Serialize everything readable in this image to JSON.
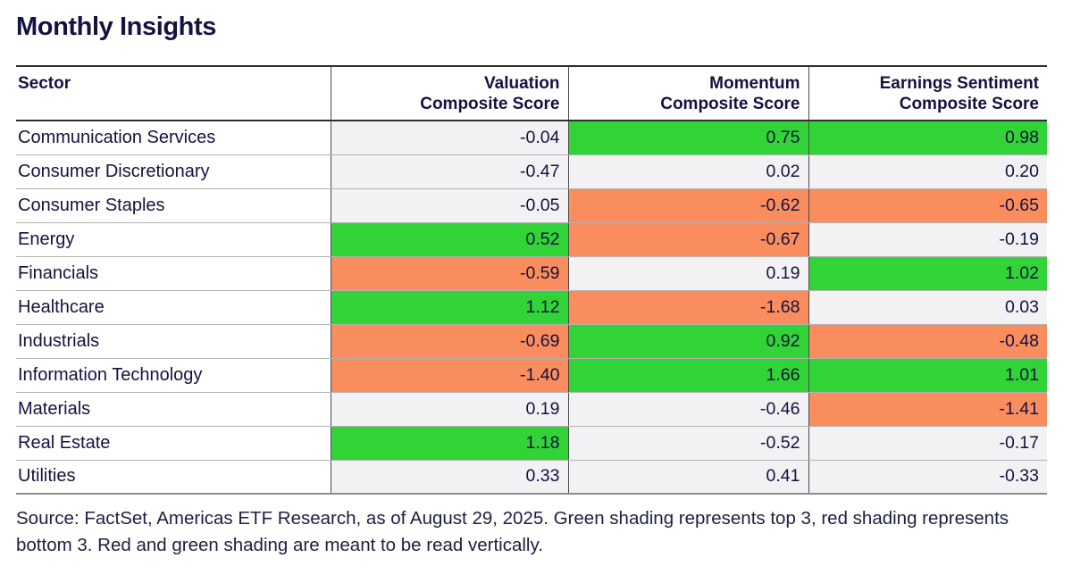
{
  "page": {
    "title": "Monthly Insights"
  },
  "table": {
    "columns": [
      {
        "header": "Sector"
      },
      {
        "header_line1": "Valuation",
        "header_line2": "Composite Score"
      },
      {
        "header_line1": "Momentum",
        "header_line2": "Composite Score"
      },
      {
        "header_line1": "Earnings Sentiment",
        "header_line2": "Composite Score"
      }
    ],
    "rows": [
      {
        "sector": "Communication Services",
        "values": [
          {
            "text": "-0.04",
            "shade": "none"
          },
          {
            "text": "0.75",
            "shade": "green"
          },
          {
            "text": "0.98",
            "shade": "green"
          }
        ]
      },
      {
        "sector": "Consumer Discretionary",
        "values": [
          {
            "text": "-0.47",
            "shade": "none"
          },
          {
            "text": "0.02",
            "shade": "none"
          },
          {
            "text": "0.20",
            "shade": "none"
          }
        ]
      },
      {
        "sector": "Consumer Staples",
        "values": [
          {
            "text": "-0.05",
            "shade": "none"
          },
          {
            "text": "-0.62",
            "shade": "red"
          },
          {
            "text": "-0.65",
            "shade": "red"
          }
        ]
      },
      {
        "sector": "Energy",
        "values": [
          {
            "text": "0.52",
            "shade": "green"
          },
          {
            "text": "-0.67",
            "shade": "red"
          },
          {
            "text": "-0.19",
            "shade": "none"
          }
        ]
      },
      {
        "sector": "Financials",
        "values": [
          {
            "text": "-0.59",
            "shade": "red"
          },
          {
            "text": "0.19",
            "shade": "none"
          },
          {
            "text": "1.02",
            "shade": "green"
          }
        ]
      },
      {
        "sector": "Healthcare",
        "values": [
          {
            "text": "1.12",
            "shade": "green"
          },
          {
            "text": "-1.68",
            "shade": "red"
          },
          {
            "text": "0.03",
            "shade": "none"
          }
        ]
      },
      {
        "sector": "Industrials",
        "values": [
          {
            "text": "-0.69",
            "shade": "red"
          },
          {
            "text": "0.92",
            "shade": "green"
          },
          {
            "text": "-0.48",
            "shade": "red"
          }
        ]
      },
      {
        "sector": "Information Technology",
        "values": [
          {
            "text": "-1.40",
            "shade": "red"
          },
          {
            "text": "1.66",
            "shade": "green"
          },
          {
            "text": "1.01",
            "shade": "green"
          }
        ]
      },
      {
        "sector": "Materials",
        "values": [
          {
            "text": "0.19",
            "shade": "none"
          },
          {
            "text": "-0.46",
            "shade": "none"
          },
          {
            "text": "-1.41",
            "shade": "red"
          }
        ]
      },
      {
        "sector": "Real Estate",
        "values": [
          {
            "text": "1.18",
            "shade": "green"
          },
          {
            "text": "-0.52",
            "shade": "none"
          },
          {
            "text": "-0.17",
            "shade": "none"
          }
        ]
      },
      {
        "sector": "Utilities",
        "values": [
          {
            "text": "0.33",
            "shade": "none"
          },
          {
            "text": "0.41",
            "shade": "none"
          },
          {
            "text": "-0.33",
            "shade": "none"
          }
        ]
      }
    ]
  },
  "footer": {
    "source_note": "Source: FactSet, Americas ETF Research, as of August 29, 2025. Green shading represents top 3, red shading represents bottom 3. Red and green shading are meant to be read vertically."
  },
  "colors": {
    "shade_green": "#32d336",
    "shade_red": "#fa8d5e",
    "shade_neutral": "#f2f2f4",
    "text_navy": "#141240"
  },
  "chart_data": {
    "type": "table",
    "title": "Monthly Insights",
    "columns": [
      "Sector",
      "Valuation Composite Score",
      "Momentum Composite Score",
      "Earnings Sentiment Composite Score"
    ],
    "rows": [
      [
        "Communication Services",
        -0.04,
        0.75,
        0.98
      ],
      [
        "Consumer Discretionary",
        -0.47,
        0.02,
        0.2
      ],
      [
        "Consumer Staples",
        -0.05,
        -0.62,
        -0.65
      ],
      [
        "Energy",
        0.52,
        -0.67,
        -0.19
      ],
      [
        "Financials",
        -0.59,
        0.19,
        1.02
      ],
      [
        "Healthcare",
        1.12,
        -1.68,
        0.03
      ],
      [
        "Industrials",
        -0.69,
        0.92,
        -0.48
      ],
      [
        "Information Technology",
        -1.4,
        1.66,
        1.01
      ],
      [
        "Materials",
        0.19,
        -0.46,
        -1.41
      ],
      [
        "Real Estate",
        1.18,
        -0.52,
        -0.17
      ],
      [
        "Utilities",
        0.33,
        0.41,
        -0.33
      ]
    ],
    "shading": {
      "rule": "Green shading represents top 3, red shading represents bottom 3; shading is read vertically per column.",
      "green_cells_by_column": {
        "Valuation Composite Score": [
          "Energy",
          "Healthcare",
          "Real Estate"
        ],
        "Momentum Composite Score": [
          "Communication Services",
          "Industrials",
          "Information Technology"
        ],
        "Earnings Sentiment Composite Score": [
          "Communication Services",
          "Financials",
          "Information Technology"
        ]
      },
      "red_cells_by_column": {
        "Valuation Composite Score": [
          "Financials",
          "Industrials",
          "Information Technology"
        ],
        "Momentum Composite Score": [
          "Consumer Staples",
          "Energy",
          "Healthcare"
        ],
        "Earnings Sentiment Composite Score": [
          "Consumer Staples",
          "Industrials",
          "Materials"
        ]
      }
    }
  }
}
